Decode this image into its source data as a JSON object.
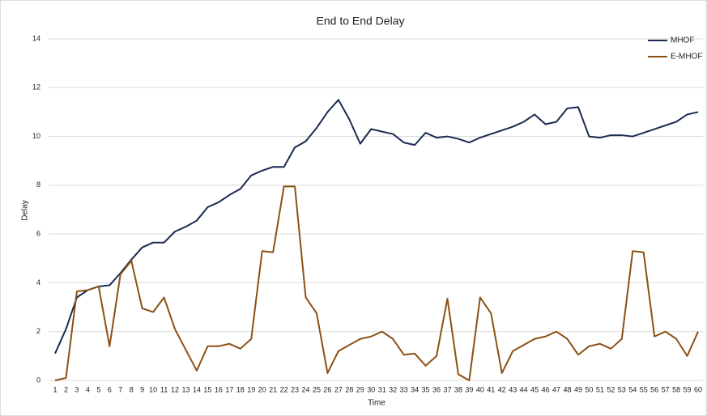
{
  "chart_data": {
    "type": "line",
    "title": "End to End Delay",
    "x_label": "Time",
    "y_label": "Delay",
    "x": [
      1,
      2,
      3,
      4,
      5,
      6,
      7,
      8,
      9,
      10,
      11,
      12,
      13,
      14,
      15,
      16,
      17,
      18,
      19,
      20,
      21,
      22,
      23,
      24,
      25,
      26,
      27,
      28,
      29,
      30,
      31,
      32,
      33,
      34,
      35,
      36,
      37,
      38,
      39,
      40,
      41,
      42,
      43,
      44,
      45,
      46,
      47,
      48,
      49,
      50,
      51,
      52,
      53,
      54,
      55,
      56,
      57,
      58,
      59,
      60
    ],
    "xlim": [
      1,
      60
    ],
    "ylim": [
      0,
      14
    ],
    "yticks": [
      0,
      2,
      4,
      6,
      8,
      10,
      12,
      14
    ],
    "grid": true,
    "legend": "top-right",
    "series": [
      {
        "name": "MHOF",
        "color": "#1b2a52",
        "values": [
          1.1,
          2.1,
          3.4,
          3.7,
          3.85,
          3.9,
          4.4,
          4.95,
          5.45,
          5.65,
          5.65,
          6.1,
          6.3,
          6.55,
          7.1,
          7.3,
          7.6,
          7.85,
          8.4,
          8.6,
          8.75,
          8.75,
          9.55,
          9.8,
          10.35,
          11.0,
          11.5,
          10.7,
          9.7,
          10.3,
          10.2,
          10.1,
          9.75,
          9.65,
          10.15,
          9.95,
          10.0,
          9.9,
          9.75,
          9.95,
          10.1,
          10.25,
          10.4,
          10.6,
          10.9,
          10.5,
          10.6,
          11.15,
          11.2,
          10.0,
          9.95,
          10.05,
          10.05,
          10.0,
          10.15,
          10.3,
          10.45,
          10.6,
          10.9,
          11.0
        ]
      },
      {
        "name": "E-MHOF",
        "color": "#8b5014",
        "values": [
          0,
          0.1,
          3.65,
          3.7,
          3.85,
          1.4,
          4.35,
          4.9,
          2.95,
          2.8,
          3.4,
          2.1,
          1.25,
          0.4,
          1.4,
          1.4,
          1.5,
          1.3,
          1.7,
          5.3,
          5.25,
          7.95,
          7.95,
          3.4,
          2.75,
          0.3,
          1.2,
          1.45,
          1.7,
          1.8,
          2.0,
          1.7,
          1.05,
          1.1,
          0.6,
          1.0,
          3.35,
          0.25,
          0.0,
          3.4,
          2.75,
          0.3,
          1.2,
          1.45,
          1.7,
          1.8,
          2.0,
          1.7,
          1.05,
          1.4,
          1.5,
          1.3,
          1.7,
          5.3,
          5.25,
          1.8,
          2.0,
          1.7,
          1.0,
          2.0
        ]
      }
    ]
  }
}
